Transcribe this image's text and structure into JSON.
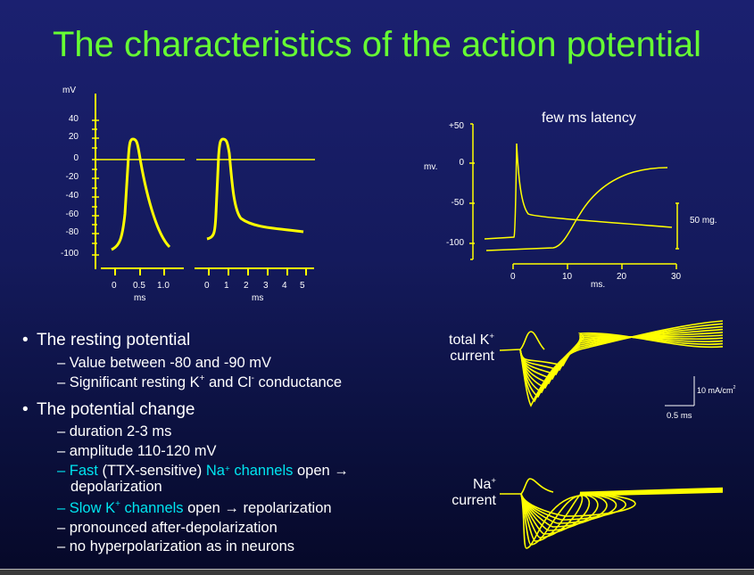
{
  "slide": {
    "title": "The characteristics of the action potential",
    "colors": {
      "title": "#66ff33",
      "trace": "#ffff00",
      "highlight": "#00e5f0",
      "text": "#ffffff"
    }
  },
  "left_figure": {
    "y_unit": "mV",
    "y_ticks": [
      "40",
      "20",
      "0",
      "-20",
      "-40",
      "-60",
      "-80",
      "-100"
    ],
    "panel1_x_ticks": [
      "0",
      "0.5",
      "1.0"
    ],
    "panel1_x_unit": "ms",
    "panel2_x_ticks": [
      "0",
      "1",
      "2",
      "3",
      "4",
      "5"
    ],
    "panel2_x_unit": "ms"
  },
  "right_figure": {
    "annotation": "few ms latency",
    "y_unit": "mv.",
    "y_ticks": [
      "+50",
      "0",
      "-50",
      "-100"
    ],
    "x_ticks": [
      "0",
      "10",
      "20",
      "30"
    ],
    "x_unit": "ms.",
    "scale_bar_label": "50 mg."
  },
  "currents_figure": {
    "k_label_line1": "total K",
    "k_label_sup": "+",
    "k_label_line2": "current",
    "na_label_line1": "Na",
    "na_label_sup": "+",
    "na_label_line2": "current",
    "scale_y_label": "10 mA/cm",
    "scale_y_sup": "2",
    "scale_x_label": "0.5 ms"
  },
  "bullets": {
    "b1": "The resting potential",
    "b1_s1": "– Value between -80 and -90 mV",
    "b1_s2_a": "– Significant resting K",
    "b1_s2_sup1": "+",
    "b1_s2_b": " and Cl",
    "b1_s2_sup2": "-",
    "b1_s2_c": " conductance",
    "b2": "The potential change",
    "b2_s1": "– duration 2-3 ms",
    "b2_s2": "– amplitude 110-120 mV",
    "b2_s3_a": "– Fast",
    "b2_s3_b": " (TTX-sensitive) ",
    "b2_s3_c": "Na",
    "b2_s3_sup": "+",
    "b2_s3_d": " channels",
    "b2_s3_e": " open →",
    "b2_s3_f": "depolarization",
    "b2_s4_a": "– Slow K",
    "b2_s4_sup": "+",
    "b2_s4_b": " channels",
    "b2_s4_c": " open → repolarization",
    "b2_s5": "– pronounced after-depolarization",
    "b2_s6": "– no hyperpolarization as in neurons",
    "bullet_char": "•"
  }
}
